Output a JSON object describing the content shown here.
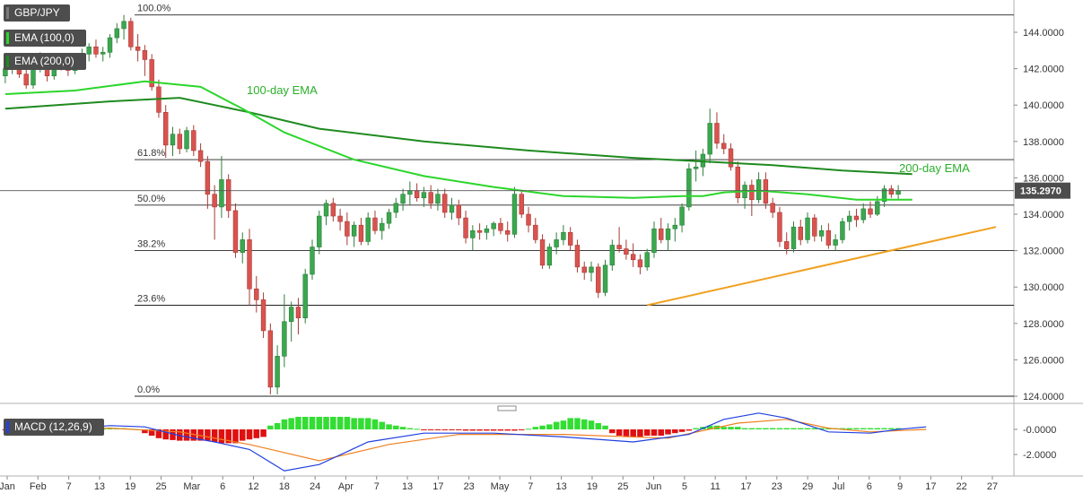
{
  "chart_data": {
    "type": "candlestick",
    "symbol": "GBP/JPY",
    "legend": [
      {
        "label": "GBP/JPY",
        "color": "#4d4d4d"
      },
      {
        "label": "EMA (100,0)",
        "color": "#2bd62b"
      },
      {
        "label": "EMA (200,0)",
        "color": "#1f8a1f"
      }
    ],
    "price_axis": {
      "min": 124.0,
      "max": 145.0,
      "ticks": [
        "144.0000",
        "142.0000",
        "140.0000",
        "138.0000",
        "136.0000",
        "134.0000",
        "132.0000",
        "130.0000",
        "128.0000",
        "126.0000",
        "124.0000"
      ]
    },
    "last_price": {
      "label": "135.2970",
      "value": 135.297
    },
    "fib_levels": [
      {
        "label": "100.0%",
        "value": 144.95
      },
      {
        "label": "61.8%",
        "value": 137.0
      },
      {
        "label": "50.0%",
        "value": 134.5
      },
      {
        "label": "38.2%",
        "value": 132.0
      },
      {
        "label": "23.6%",
        "value": 129.0
      },
      {
        "label": "0.0%",
        "value": 124.0
      }
    ],
    "annotations": [
      "100-day EMA",
      "200-day EMA"
    ],
    "date_labels": [
      "Jan",
      "Feb",
      "7",
      "13",
      "19",
      "25",
      "Mar",
      "6",
      "12",
      "18",
      "24",
      "Apr",
      "7",
      "13",
      "17",
      "23",
      "May",
      "7",
      "13",
      "19",
      "25",
      "Jun",
      "5",
      "11",
      "17",
      "23",
      "29",
      "Jul",
      "6",
      "9",
      "17",
      "22",
      "27"
    ],
    "candles": [
      {
        "o": 141.6,
        "h": 142.3,
        "l": 141.2,
        "c": 142.0
      },
      {
        "o": 142.0,
        "h": 142.4,
        "l": 141.7,
        "c": 142.2
      },
      {
        "o": 142.2,
        "h": 142.6,
        "l": 141.5,
        "c": 141.7
      },
      {
        "o": 141.7,
        "h": 142.0,
        "l": 140.9,
        "c": 141.1
      },
      {
        "o": 141.1,
        "h": 142.4,
        "l": 140.9,
        "c": 142.1
      },
      {
        "o": 142.1,
        "h": 142.9,
        "l": 141.8,
        "c": 142.4
      },
      {
        "o": 142.4,
        "h": 142.7,
        "l": 141.3,
        "c": 141.6
      },
      {
        "o": 141.6,
        "h": 142.6,
        "l": 141.4,
        "c": 142.3
      },
      {
        "o": 142.3,
        "h": 142.8,
        "l": 141.9,
        "c": 142.1
      },
      {
        "o": 142.1,
        "h": 142.5,
        "l": 141.6,
        "c": 141.9
      },
      {
        "o": 141.9,
        "h": 142.6,
        "l": 141.7,
        "c": 142.4
      },
      {
        "o": 142.4,
        "h": 143.1,
        "l": 142.1,
        "c": 142.8
      },
      {
        "o": 142.8,
        "h": 143.4,
        "l": 142.4,
        "c": 143.2
      },
      {
        "o": 143.2,
        "h": 143.6,
        "l": 142.6,
        "c": 142.8
      },
      {
        "o": 142.8,
        "h": 143.2,
        "l": 142.4,
        "c": 142.9
      },
      {
        "o": 142.9,
        "h": 143.9,
        "l": 142.6,
        "c": 143.7
      },
      {
        "o": 143.7,
        "h": 144.5,
        "l": 143.4,
        "c": 144.2
      },
      {
        "o": 144.2,
        "h": 144.95,
        "l": 143.6,
        "c": 144.6
      },
      {
        "o": 144.6,
        "h": 144.8,
        "l": 143.0,
        "c": 143.2
      },
      {
        "o": 143.2,
        "h": 143.9,
        "l": 142.4,
        "c": 143.0
      },
      {
        "o": 143.0,
        "h": 143.3,
        "l": 141.6,
        "c": 142.5
      },
      {
        "o": 142.5,
        "h": 142.8,
        "l": 140.8,
        "c": 141.0
      },
      {
        "o": 141.0,
        "h": 141.4,
        "l": 139.3,
        "c": 139.6
      },
      {
        "o": 139.6,
        "h": 140.0,
        "l": 137.1,
        "c": 137.8
      },
      {
        "o": 137.8,
        "h": 138.8,
        "l": 137.2,
        "c": 138.4
      },
      {
        "o": 138.4,
        "h": 138.7,
        "l": 137.3,
        "c": 137.6
      },
      {
        "o": 137.6,
        "h": 138.8,
        "l": 137.4,
        "c": 138.6
      },
      {
        "o": 138.6,
        "h": 138.9,
        "l": 137.2,
        "c": 137.5
      },
      {
        "o": 137.5,
        "h": 137.9,
        "l": 136.6,
        "c": 136.9
      },
      {
        "o": 136.9,
        "h": 137.2,
        "l": 134.3,
        "c": 135.1
      },
      {
        "o": 135.1,
        "h": 135.6,
        "l": 132.6,
        "c": 134.4
      },
      {
        "o": 134.4,
        "h": 137.2,
        "l": 133.8,
        "c": 135.9
      },
      {
        "o": 135.9,
        "h": 136.2,
        "l": 133.8,
        "c": 134.2
      },
      {
        "o": 134.2,
        "h": 134.6,
        "l": 131.6,
        "c": 131.9
      },
      {
        "o": 131.9,
        "h": 133.0,
        "l": 131.3,
        "c": 132.6
      },
      {
        "o": 132.6,
        "h": 133.2,
        "l": 129.0,
        "c": 129.9
      },
      {
        "o": 129.9,
        "h": 130.6,
        "l": 128.6,
        "c": 129.3
      },
      {
        "o": 129.3,
        "h": 129.7,
        "l": 127.2,
        "c": 127.6
      },
      {
        "o": 127.6,
        "h": 128.0,
        "l": 124.1,
        "c": 124.5
      },
      {
        "o": 124.5,
        "h": 126.8,
        "l": 124.1,
        "c": 126.2
      },
      {
        "o": 126.2,
        "h": 129.6,
        "l": 125.6,
        "c": 128.1
      },
      {
        "o": 128.1,
        "h": 129.2,
        "l": 127.0,
        "c": 128.9
      },
      {
        "o": 128.9,
        "h": 129.4,
        "l": 127.4,
        "c": 128.3
      },
      {
        "o": 128.3,
        "h": 131.0,
        "l": 128.0,
        "c": 130.7
      },
      {
        "o": 130.7,
        "h": 132.6,
        "l": 130.4,
        "c": 132.2
      },
      {
        "o": 132.2,
        "h": 134.2,
        "l": 131.8,
        "c": 133.9
      },
      {
        "o": 133.9,
        "h": 134.8,
        "l": 133.4,
        "c": 134.6
      },
      {
        "o": 134.6,
        "h": 134.9,
        "l": 133.6,
        "c": 133.9
      },
      {
        "o": 133.9,
        "h": 134.3,
        "l": 133.1,
        "c": 133.6
      },
      {
        "o": 133.6,
        "h": 134.1,
        "l": 132.3,
        "c": 132.8
      },
      {
        "o": 132.8,
        "h": 133.6,
        "l": 132.2,
        "c": 133.4
      },
      {
        "o": 133.4,
        "h": 133.8,
        "l": 132.3,
        "c": 132.5
      },
      {
        "o": 132.5,
        "h": 134.1,
        "l": 132.3,
        "c": 133.8
      },
      {
        "o": 133.8,
        "h": 134.2,
        "l": 132.9,
        "c": 133.1
      },
      {
        "o": 133.1,
        "h": 133.8,
        "l": 132.6,
        "c": 133.5
      },
      {
        "o": 133.5,
        "h": 134.3,
        "l": 133.2,
        "c": 134.1
      },
      {
        "o": 134.1,
        "h": 134.9,
        "l": 133.8,
        "c": 134.6
      },
      {
        "o": 134.6,
        "h": 135.4,
        "l": 134.2,
        "c": 135.1
      },
      {
        "o": 135.1,
        "h": 135.8,
        "l": 134.5,
        "c": 135.3
      },
      {
        "o": 135.3,
        "h": 135.7,
        "l": 134.7,
        "c": 134.9
      },
      {
        "o": 134.9,
        "h": 135.5,
        "l": 134.4,
        "c": 135.2
      },
      {
        "o": 135.2,
        "h": 135.6,
        "l": 134.3,
        "c": 134.6
      },
      {
        "o": 134.6,
        "h": 135.4,
        "l": 134.2,
        "c": 135.1
      },
      {
        "o": 135.1,
        "h": 135.4,
        "l": 133.8,
        "c": 134.1
      },
      {
        "o": 134.1,
        "h": 134.9,
        "l": 133.7,
        "c": 134.5
      },
      {
        "o": 134.5,
        "h": 134.8,
        "l": 133.4,
        "c": 133.8
      },
      {
        "o": 133.8,
        "h": 134.2,
        "l": 132.4,
        "c": 132.7
      },
      {
        "o": 132.7,
        "h": 133.4,
        "l": 132.0,
        "c": 133.1
      },
      {
        "o": 133.1,
        "h": 133.5,
        "l": 132.6,
        "c": 133.0
      },
      {
        "o": 133.0,
        "h": 133.4,
        "l": 132.6,
        "c": 133.2
      },
      {
        "o": 133.2,
        "h": 133.6,
        "l": 132.8,
        "c": 133.5
      },
      {
        "o": 133.5,
        "h": 133.8,
        "l": 132.9,
        "c": 133.1
      },
      {
        "o": 133.1,
        "h": 133.6,
        "l": 132.5,
        "c": 132.9
      },
      {
        "o": 132.9,
        "h": 135.5,
        "l": 132.7,
        "c": 135.1
      },
      {
        "o": 135.1,
        "h": 135.3,
        "l": 133.8,
        "c": 134.0
      },
      {
        "o": 134.0,
        "h": 134.4,
        "l": 133.0,
        "c": 133.4
      },
      {
        "o": 133.4,
        "h": 133.8,
        "l": 132.4,
        "c": 132.6
      },
      {
        "o": 132.6,
        "h": 132.9,
        "l": 131.0,
        "c": 131.2
      },
      {
        "o": 131.2,
        "h": 132.4,
        "l": 131.0,
        "c": 132.2
      },
      {
        "o": 132.2,
        "h": 133.0,
        "l": 131.8,
        "c": 132.6
      },
      {
        "o": 132.6,
        "h": 133.4,
        "l": 132.3,
        "c": 133.0
      },
      {
        "o": 133.0,
        "h": 133.3,
        "l": 132.0,
        "c": 132.3
      },
      {
        "o": 132.3,
        "h": 132.6,
        "l": 130.8,
        "c": 131.1
      },
      {
        "o": 131.1,
        "h": 131.4,
        "l": 130.4,
        "c": 130.8
      },
      {
        "o": 130.8,
        "h": 131.4,
        "l": 130.3,
        "c": 131.1
      },
      {
        "o": 131.1,
        "h": 131.3,
        "l": 129.4,
        "c": 129.7
      },
      {
        "o": 129.7,
        "h": 131.5,
        "l": 129.5,
        "c": 131.2
      },
      {
        "o": 131.2,
        "h": 132.6,
        "l": 130.9,
        "c": 132.3
      },
      {
        "o": 132.3,
        "h": 133.3,
        "l": 131.9,
        "c": 132.1
      },
      {
        "o": 132.1,
        "h": 132.6,
        "l": 131.5,
        "c": 131.8
      },
      {
        "o": 131.8,
        "h": 132.4,
        "l": 131.1,
        "c": 131.5
      },
      {
        "o": 131.5,
        "h": 131.8,
        "l": 130.7,
        "c": 131.1
      },
      {
        "o": 131.1,
        "h": 132.1,
        "l": 130.9,
        "c": 131.9
      },
      {
        "o": 131.9,
        "h": 133.6,
        "l": 131.6,
        "c": 133.2
      },
      {
        "o": 133.2,
        "h": 133.8,
        "l": 132.4,
        "c": 132.6
      },
      {
        "o": 132.6,
        "h": 133.5,
        "l": 132.0,
        "c": 133.2
      },
      {
        "o": 133.2,
        "h": 133.8,
        "l": 132.5,
        "c": 133.4
      },
      {
        "o": 133.4,
        "h": 134.6,
        "l": 133.0,
        "c": 134.4
      },
      {
        "o": 134.4,
        "h": 136.8,
        "l": 134.2,
        "c": 136.5
      },
      {
        "o": 136.5,
        "h": 137.5,
        "l": 135.8,
        "c": 136.6
      },
      {
        "o": 136.6,
        "h": 137.6,
        "l": 136.1,
        "c": 137.3
      },
      {
        "o": 137.3,
        "h": 139.8,
        "l": 136.8,
        "c": 139.0
      },
      {
        "o": 139.0,
        "h": 139.6,
        "l": 137.6,
        "c": 137.9
      },
      {
        "o": 137.9,
        "h": 138.4,
        "l": 137.3,
        "c": 137.6
      },
      {
        "o": 137.6,
        "h": 137.9,
        "l": 136.4,
        "c": 136.6
      },
      {
        "o": 136.6,
        "h": 136.9,
        "l": 134.6,
        "c": 134.9
      },
      {
        "o": 134.9,
        "h": 135.8,
        "l": 134.3,
        "c": 135.6
      },
      {
        "o": 135.6,
        "h": 135.9,
        "l": 133.9,
        "c": 134.8
      },
      {
        "o": 134.8,
        "h": 136.3,
        "l": 134.6,
        "c": 135.9
      },
      {
        "o": 135.9,
        "h": 136.3,
        "l": 134.3,
        "c": 134.6
      },
      {
        "o": 134.6,
        "h": 134.9,
        "l": 133.8,
        "c": 134.1
      },
      {
        "o": 134.1,
        "h": 134.4,
        "l": 132.2,
        "c": 132.5
      },
      {
        "o": 132.5,
        "h": 133.0,
        "l": 131.8,
        "c": 132.1
      },
      {
        "o": 132.1,
        "h": 133.6,
        "l": 131.9,
        "c": 133.3
      },
      {
        "o": 133.3,
        "h": 133.7,
        "l": 132.3,
        "c": 132.6
      },
      {
        "o": 132.6,
        "h": 134.1,
        "l": 132.4,
        "c": 133.8
      },
      {
        "o": 133.8,
        "h": 134.0,
        "l": 132.5,
        "c": 132.8
      },
      {
        "o": 132.8,
        "h": 133.4,
        "l": 132.5,
        "c": 133.1
      },
      {
        "o": 133.1,
        "h": 133.5,
        "l": 132.1,
        "c": 132.3
      },
      {
        "o": 132.3,
        "h": 132.9,
        "l": 132.0,
        "c": 132.6
      },
      {
        "o": 132.6,
        "h": 133.8,
        "l": 132.4,
        "c": 133.6
      },
      {
        "o": 133.6,
        "h": 134.2,
        "l": 133.1,
        "c": 133.9
      },
      {
        "o": 133.9,
        "h": 134.3,
        "l": 133.3,
        "c": 133.7
      },
      {
        "o": 133.7,
        "h": 134.6,
        "l": 133.5,
        "c": 134.3
      },
      {
        "o": 134.3,
        "h": 134.7,
        "l": 133.8,
        "c": 134.0
      },
      {
        "o": 134.0,
        "h": 135.0,
        "l": 133.9,
        "c": 134.7
      },
      {
        "o": 134.7,
        "h": 135.6,
        "l": 134.4,
        "c": 135.4
      },
      {
        "o": 135.4,
        "h": 135.6,
        "l": 134.9,
        "c": 135.1
      },
      {
        "o": 135.1,
        "h": 135.6,
        "l": 134.8,
        "c": 135.3
      }
    ],
    "ema100": [
      [
        0,
        140.6
      ],
      [
        10,
        140.8
      ],
      [
        20,
        141.3
      ],
      [
        28,
        141.0
      ],
      [
        34,
        139.8
      ],
      [
        40,
        138.5
      ],
      [
        50,
        137.0
      ],
      [
        60,
        136.1
      ],
      [
        70,
        135.5
      ],
      [
        80,
        135.0
      ],
      [
        90,
        134.9
      ],
      [
        97,
        135.0
      ],
      [
        100,
        135.0
      ],
      [
        103,
        135.2
      ],
      [
        108,
        135.3
      ],
      [
        115,
        135.1
      ],
      [
        122,
        134.8
      ],
      [
        130,
        134.8
      ]
    ],
    "ema200": [
      [
        0,
        139.8
      ],
      [
        15,
        140.2
      ],
      [
        25,
        140.4
      ],
      [
        35,
        139.6
      ],
      [
        45,
        138.7
      ],
      [
        60,
        138.0
      ],
      [
        75,
        137.5
      ],
      [
        90,
        137.1
      ],
      [
        100,
        136.9
      ],
      [
        110,
        136.7
      ],
      [
        120,
        136.4
      ],
      [
        130,
        136.2
      ]
    ],
    "trendline": [
      [
        92,
        129.0
      ],
      [
        142,
        133.3
      ]
    ],
    "macd": {
      "label": "MACD (12,26,9)",
      "ticks": [
        "-0.0000",
        "-2.0000"
      ],
      "macd_line": [
        [
          0,
          -0.1
        ],
        [
          8,
          0.0
        ],
        [
          15,
          0.3
        ],
        [
          20,
          0.2
        ],
        [
          25,
          -0.5
        ],
        [
          30,
          -1.0
        ],
        [
          35,
          -1.6
        ],
        [
          40,
          -3.3
        ],
        [
          45,
          -2.8
        ],
        [
          52,
          -1.0
        ],
        [
          60,
          -0.3
        ],
        [
          70,
          -0.3
        ],
        [
          80,
          -0.6
        ],
        [
          90,
          -1.0
        ],
        [
          98,
          -0.4
        ],
        [
          103,
          0.8
        ],
        [
          108,
          1.3
        ],
        [
          112,
          0.9
        ],
        [
          118,
          -0.2
        ],
        [
          124,
          -0.3
        ],
        [
          128,
          0.0
        ],
        [
          132,
          0.2
        ]
      ],
      "signal_line": [
        [
          0,
          -0.1
        ],
        [
          15,
          0.1
        ],
        [
          25,
          -0.2
        ],
        [
          35,
          -1.2
        ],
        [
          45,
          -2.5
        ],
        [
          55,
          -1.2
        ],
        [
          65,
          -0.4
        ],
        [
          80,
          -0.4
        ],
        [
          95,
          -0.7
        ],
        [
          105,
          0.5
        ],
        [
          112,
          0.8
        ],
        [
          118,
          0.1
        ],
        [
          124,
          -0.2
        ],
        [
          132,
          0.0
        ]
      ],
      "histogram": [
        -0.05,
        -0.05,
        -0.1,
        -0.15,
        -0.2,
        -0.2,
        -0.2,
        -0.2,
        -0.15,
        -0.15,
        -0.1,
        -0.1,
        -0.05,
        0.0,
        0.05,
        0.1,
        0.1,
        0.1,
        0.05,
        0.0,
        -0.3,
        -0.5,
        -0.7,
        -0.8,
        -0.85,
        -0.9,
        -0.9,
        -0.9,
        -0.9,
        -0.9,
        -1.0,
        -1.1,
        -1.1,
        -1.1,
        -0.9,
        -0.8,
        -0.7,
        -0.6,
        0.3,
        0.5,
        0.8,
        0.9,
        1.0,
        1.0,
        1.0,
        1.0,
        1.0,
        1.0,
        1.0,
        1.0,
        0.9,
        0.9,
        0.9,
        0.8,
        0.6,
        0.4,
        0.3,
        0.2,
        0.1,
        0.05,
        -0.05,
        -0.05,
        -0.05,
        -0.05,
        -0.05,
        -0.05,
        -0.1,
        -0.1,
        -0.1,
        -0.1,
        -0.1,
        -0.1,
        -0.1,
        -0.1,
        -0.05,
        0.05,
        0.2,
        0.3,
        0.4,
        0.6,
        0.7,
        0.9,
        0.9,
        0.8,
        0.7,
        0.5,
        0.3,
        -0.3,
        -0.5,
        -0.6,
        -0.6,
        -0.6,
        -0.5,
        -0.5,
        -0.5,
        -0.4,
        -0.3,
        -0.2,
        -0.1,
        0.1,
        0.2,
        0.3,
        0.3,
        0.2,
        0.2,
        0.2,
        0.1,
        0.1,
        0.1,
        0.1,
        0.1,
        0.1,
        0.1,
        0.1,
        0.1,
        0.1,
        0.1,
        0.1,
        0.1,
        0.1,
        0.1,
        0.1,
        0.1,
        0.1,
        0.1,
        0.1,
        0.1,
        0.1,
        0.1,
        0.1,
        0.1
      ],
      "range": [
        -3.5,
        1.5
      ]
    }
  }
}
